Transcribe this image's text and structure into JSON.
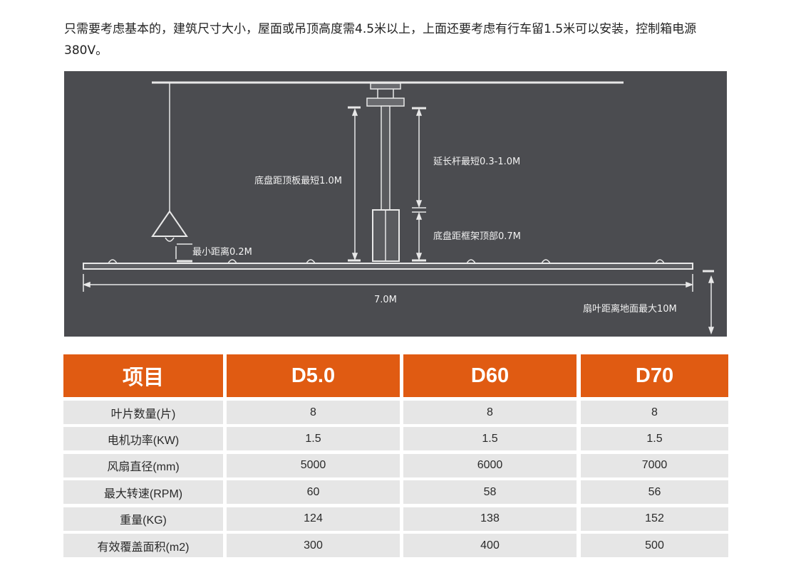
{
  "intro_text": "只需要考虑基本的，建筑尺寸大小，屋面或吊顶高度需4.5米以上，上面还要考虑有行车留1.5米可以安装，控制箱电源380V。",
  "diagram": {
    "label_chassis_to_ceiling": "底盘距顶板最短1.0M",
    "label_extension_rod": "延长杆最短0.3-1.0M",
    "label_chassis_to_frame": "底盘距框架顶部0.7M",
    "label_min_distance": "最小距离0.2M",
    "label_diameter": "7.0M",
    "label_blade_to_ground": "扇叶距离地面最大10M"
  },
  "colors": {
    "header": "#e05b12",
    "row": "#e6e6e6",
    "diagram_bg": "#4b4c50"
  },
  "table": {
    "headers": [
      "项目",
      "D5.0",
      "D60",
      "D70"
    ],
    "rows": [
      [
        "叶片数量(片)",
        "8",
        "8",
        "8"
      ],
      [
        "电机功率(KW)",
        "1.5",
        "1.5",
        "1.5"
      ],
      [
        "风扇直径(mm)",
        "5000",
        "6000",
        "7000"
      ],
      [
        "最大转速(RPM)",
        "60",
        "58",
        "56"
      ],
      [
        "重量(KG)",
        "124",
        "138",
        "152"
      ],
      [
        "有效覆盖面积(m2)",
        "300",
        "400",
        "500"
      ]
    ]
  }
}
